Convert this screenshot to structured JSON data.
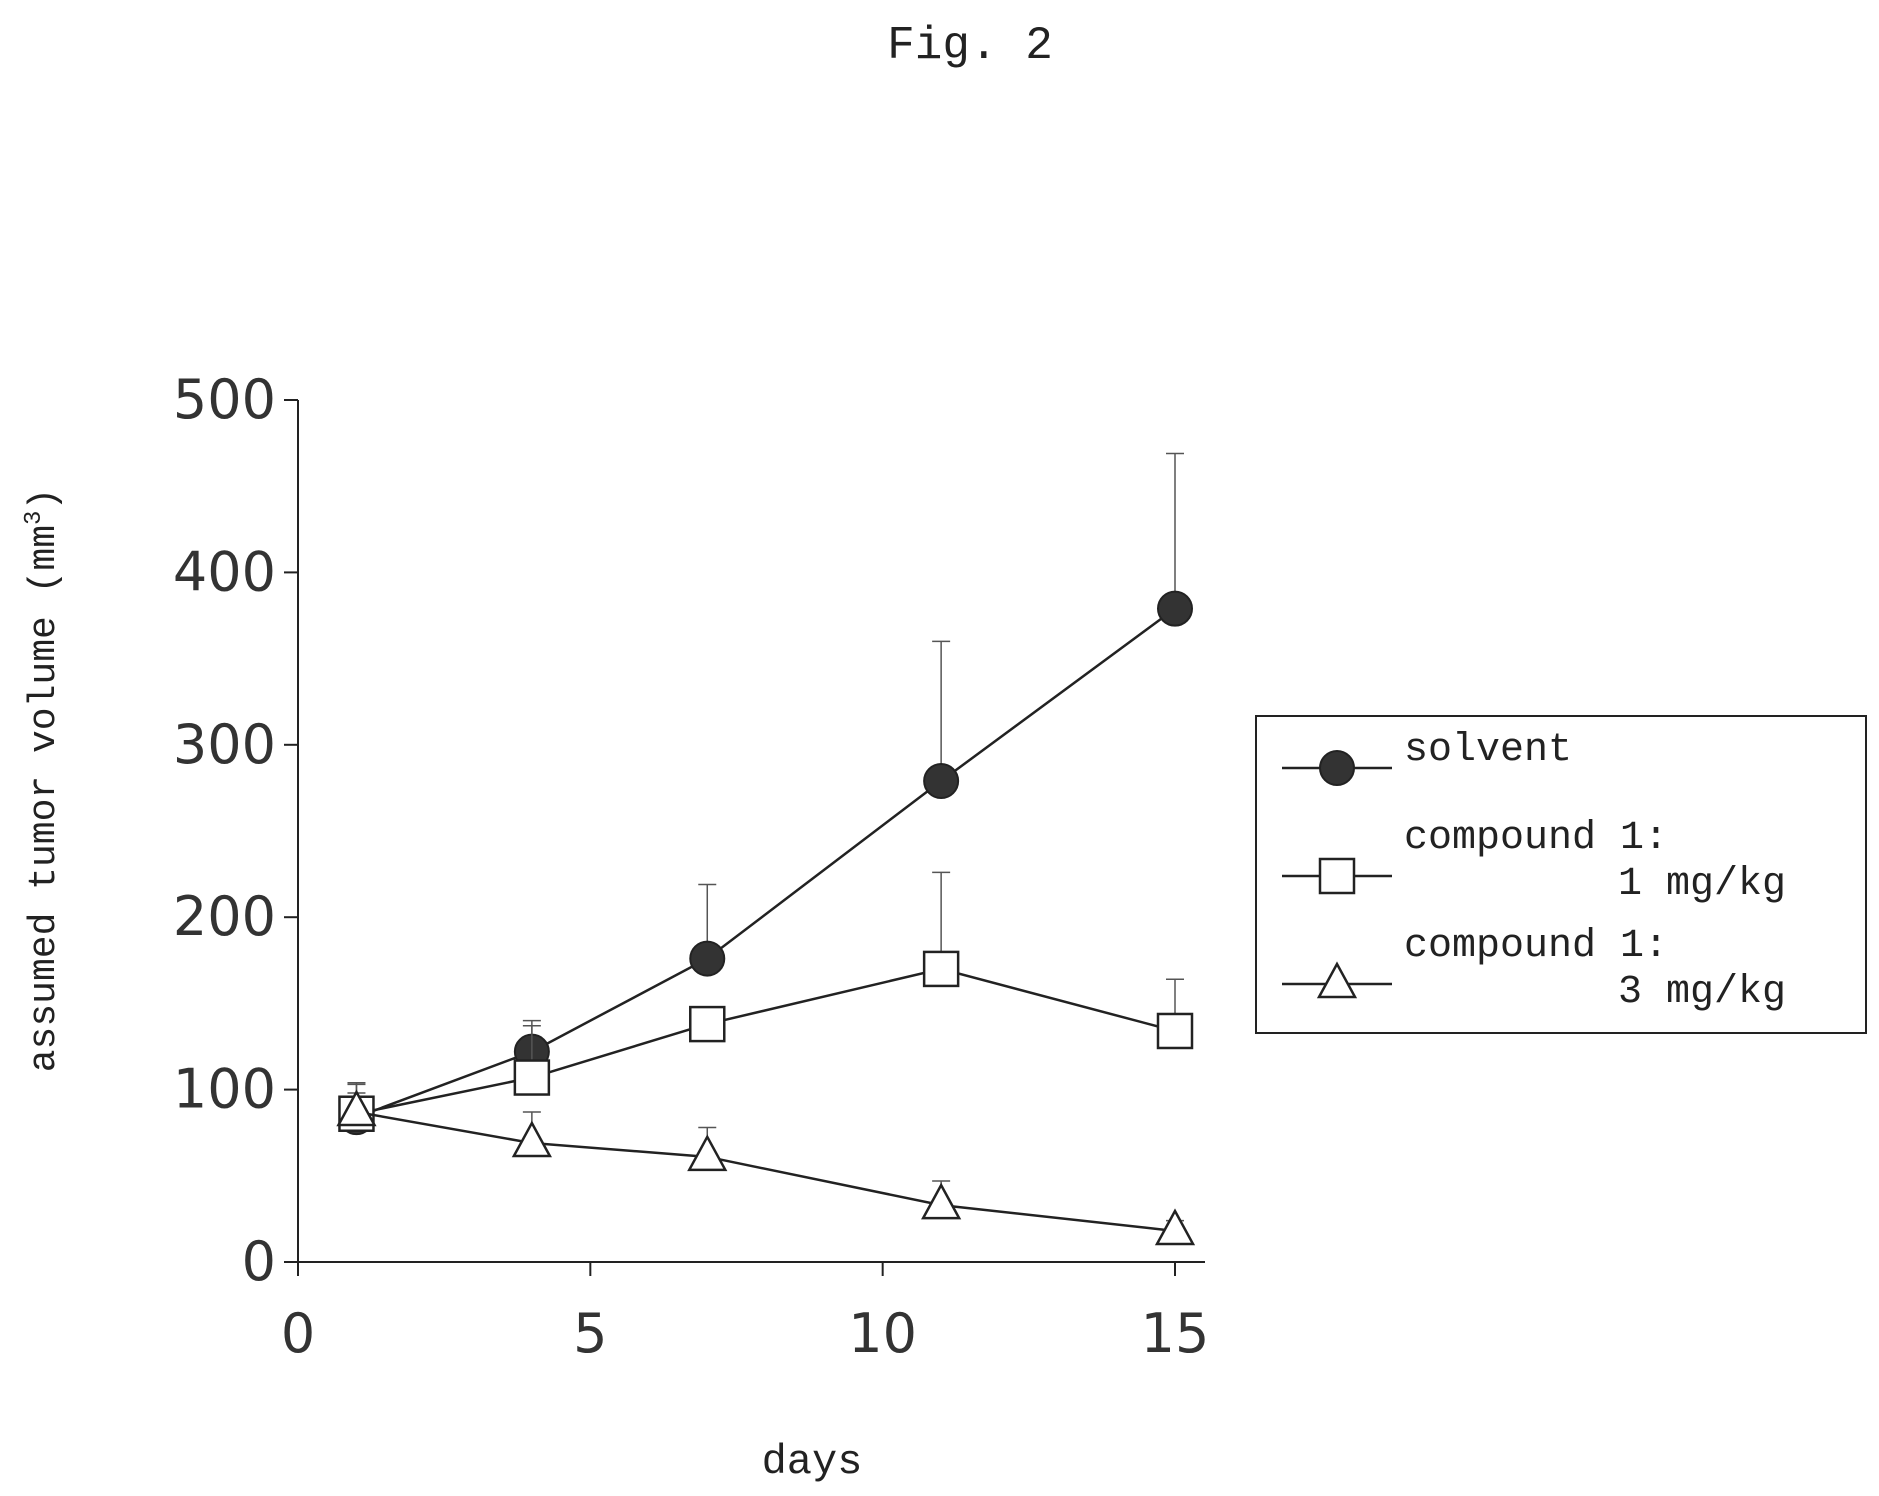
{
  "figure_label": "Fig. 2",
  "chart_data": {
    "type": "line",
    "xlabel": "days",
    "ylabel": "assumed tumor volume (mm",
    "ylabel_superscript": "3",
    "ylabel_close": ")",
    "xlim": [
      0,
      15
    ],
    "ylim": [
      0,
      500
    ],
    "x_ticks": [
      "0",
      "5",
      "10",
      "15"
    ],
    "y_ticks": [
      "0",
      "100",
      "200",
      "300",
      "400",
      "500"
    ],
    "x_tick_values": [
      0,
      5,
      10,
      15
    ],
    "y_tick_values": [
      0,
      100,
      200,
      300,
      400,
      500
    ],
    "grid": false,
    "legend_position": "right",
    "x": [
      1,
      4,
      7,
      11,
      15
    ],
    "series": [
      {
        "name": "solvent",
        "marker": "filled-circle",
        "values": [
          84,
          122,
          176,
          279,
          379
        ],
        "error_upper": [
          104,
          140,
          219,
          360,
          469
        ]
      },
      {
        "name": "compound 1: 1 mg/kg",
        "name_line1": "compound 1:",
        "name_line2": "1 mg/kg",
        "marker": "open-square",
        "values": [
          86,
          107,
          138,
          170,
          134
        ],
        "error_upper": [
          103,
          137,
          148,
          226,
          164
        ]
      },
      {
        "name": "compound 1: 3 mg/kg",
        "name_line1": "compound 1:",
        "name_line2": "3 mg/kg",
        "marker": "open-triangle",
        "values": [
          87,
          69,
          61,
          33,
          18
        ],
        "error_upper": [
          98,
          87,
          78,
          47,
          24
        ]
      }
    ]
  }
}
